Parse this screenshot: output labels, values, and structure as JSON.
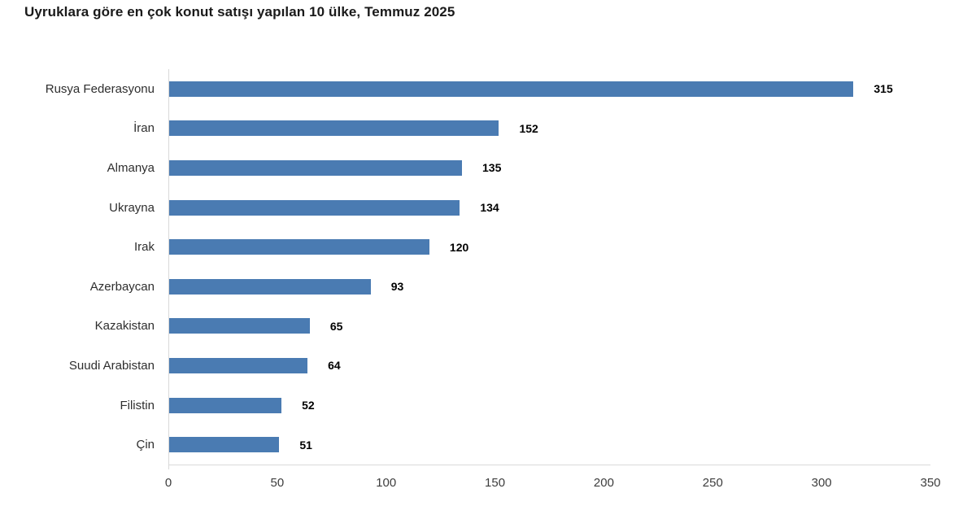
{
  "title": "Uyruklara göre en çok konut satışı yapılan 10 ülke, Temmuz 2025",
  "colors": {
    "bar": "#4a7bb2",
    "axis": "#d9d9d9",
    "title": "#1a1a1a",
    "label": "#2e2e2e",
    "value": "#000000",
    "tick": "#3d3d3d"
  },
  "chart_data": {
    "type": "bar",
    "orientation": "horizontal",
    "title": "Uyruklara göre en çok konut satışı yapılan 10 ülke, Temmuz 2025",
    "categories": [
      "Rusya Federasyonu",
      "İran",
      "Almanya",
      "Ukrayna",
      "Irak",
      "Azerbaycan",
      "Kazakistan",
      "Suudi Arabistan",
      "Filistin",
      "Çin"
    ],
    "values": [
      315,
      152,
      135,
      134,
      120,
      93,
      65,
      64,
      52,
      51
    ],
    "xlabel": "",
    "ylabel": "",
    "xlim": [
      0,
      350
    ],
    "xticks": [
      0,
      50,
      100,
      150,
      200,
      250,
      300,
      350
    ],
    "grid": false,
    "legend": false,
    "value_labels": true
  }
}
